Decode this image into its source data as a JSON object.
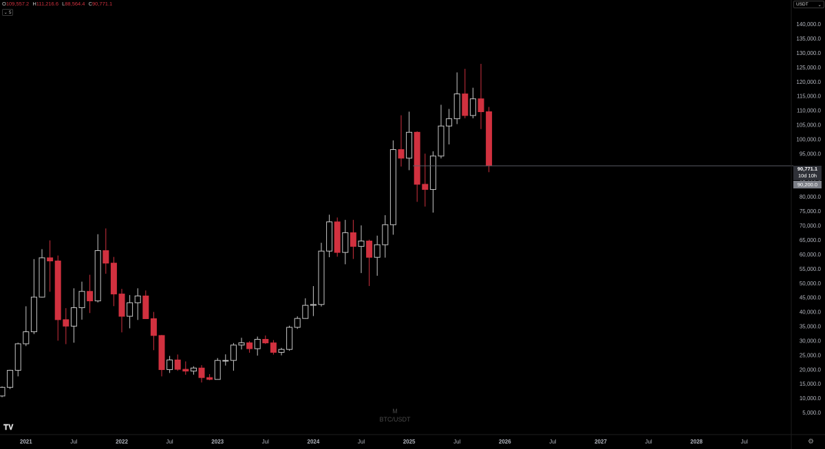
{
  "ohlc": {
    "open_key": "O",
    "open": "109,557.2",
    "high_key": "H",
    "high": "111,216.6",
    "low_key": "L",
    "low": "88,564.4",
    "close_key": "C",
    "close": "90,771.1"
  },
  "interval_button": {
    "icon": "chevron-down-icon",
    "label": "5"
  },
  "currency_selector": {
    "label": "USDT",
    "icon": "chevron-down-icon"
  },
  "watermark": {
    "interval": "M",
    "symbol": "BTC/USDT"
  },
  "price_tags": {
    "last_price": "90,771.1",
    "countdown": "10d 10h",
    "marker_price": "90,200.0"
  },
  "colors": {
    "background": "#000000",
    "up_candle_border": "#c8c8c8",
    "down_candle": "#d1313f",
    "axis_text": "#b2b5be",
    "price_line": "#5b5e66"
  },
  "chart_data": {
    "type": "candlestick",
    "interval": "1M",
    "symbol": "BTC/USDT",
    "y_axis": {
      "ticks": [
        "5,000.0",
        "10,000.0",
        "15,000.0",
        "20,000.0",
        "25,000.0",
        "30,000.0",
        "35,000.0",
        "40,000.0",
        "45,000.0",
        "50,000.0",
        "55,000.0",
        "60,000.0",
        "65,000.0",
        "70,000.0",
        "75,000.0",
        "80,000.0",
        "85,000.0",
        "90,000.0",
        "95,000.0",
        "100,000.0",
        "105,000.0",
        "110,000.0",
        "115,000.0",
        "120,000.0",
        "125,000.0",
        "130,000.0",
        "135,000.0",
        "140,000.0"
      ],
      "range": [
        0,
        146000
      ],
      "scale": "linear"
    },
    "x_axis": {
      "ticks": [
        {
          "label": "2021",
          "bold": true
        },
        {
          "label": "Jul",
          "bold": false
        },
        {
          "label": "2022",
          "bold": true
        },
        {
          "label": "Jul",
          "bold": false
        },
        {
          "label": "2023",
          "bold": true
        },
        {
          "label": "Jul",
          "bold": false
        },
        {
          "label": "2024",
          "bold": true
        },
        {
          "label": "Jul",
          "bold": false
        },
        {
          "label": "2025",
          "bold": true
        },
        {
          "label": "Jul",
          "bold": false
        },
        {
          "label": "2026",
          "bold": true
        },
        {
          "label": "Jul",
          "bold": false
        },
        {
          "label": "2027",
          "bold": true
        },
        {
          "label": "Jul",
          "bold": false
        },
        {
          "label": "2028",
          "bold": true
        },
        {
          "label": "Jul",
          "bold": false
        }
      ]
    },
    "horizontal_line": 90771.1,
    "candles": [
      [
        "2020-10",
        10780,
        14100,
        10370,
        13790
      ],
      [
        "2020-11",
        13790,
        19880,
        13200,
        19700
      ],
      [
        "2020-12",
        19700,
        29300,
        17600,
        28920
      ],
      [
        "2021-01",
        28920,
        41950,
        28130,
        33100
      ],
      [
        "2021-02",
        33100,
        58350,
        32300,
        45140
      ],
      [
        "2021-03",
        45140,
        61800,
        44980,
        58800
      ],
      [
        "2021-04",
        58800,
        64850,
        47000,
        57700
      ],
      [
        "2021-05",
        57700,
        59600,
        30000,
        37300
      ],
      [
        "2021-06",
        37300,
        41300,
        28800,
        35050
      ],
      [
        "2021-07",
        35050,
        48200,
        29300,
        41460
      ],
      [
        "2021-08",
        41460,
        50500,
        37300,
        47130
      ],
      [
        "2021-09",
        47130,
        52900,
        39600,
        43820
      ],
      [
        "2021-10",
        43820,
        67000,
        43300,
        61300
      ],
      [
        "2021-11",
        61300,
        69000,
        53250,
        56950
      ],
      [
        "2021-12",
        56950,
        59100,
        42000,
        46220
      ],
      [
        "2022-01",
        46220,
        47990,
        32900,
        38470
      ],
      [
        "2022-02",
        38470,
        45850,
        34300,
        43180
      ],
      [
        "2022-03",
        43180,
        48200,
        37200,
        45540
      ],
      [
        "2022-04",
        45540,
        47450,
        37700,
        37640
      ],
      [
        "2022-05",
        37640,
        40000,
        26700,
        31800
      ],
      [
        "2022-06",
        31800,
        31980,
        17600,
        19940
      ],
      [
        "2022-07",
        19940,
        24700,
        18780,
        23300
      ],
      [
        "2022-08",
        23300,
        25200,
        19520,
        20050
      ],
      [
        "2022-09",
        20050,
        22800,
        18150,
        19430
      ],
      [
        "2022-10",
        19430,
        21100,
        18200,
        20490
      ],
      [
        "2022-11",
        20490,
        21480,
        15480,
        17170
      ],
      [
        "2022-12",
        17170,
        18390,
        16250,
        16540
      ],
      [
        "2023-01",
        16540,
        23960,
        16500,
        23130
      ],
      [
        "2023-02",
        23130,
        25250,
        21350,
        23140
      ],
      [
        "2023-03",
        23140,
        29200,
        19550,
        28470
      ],
      [
        "2023-04",
        28470,
        31000,
        26940,
        29250
      ],
      [
        "2023-05",
        29250,
        29820,
        25810,
        27210
      ],
      [
        "2023-06",
        27210,
        31430,
        24800,
        30470
      ],
      [
        "2023-07",
        30470,
        31800,
        28860,
        29230
      ],
      [
        "2023-08",
        29230,
        30200,
        25170,
        25940
      ],
      [
        "2023-09",
        25940,
        27500,
        24900,
        26960
      ],
      [
        "2023-10",
        26960,
        35200,
        26530,
        34640
      ],
      [
        "2023-11",
        34640,
        38450,
        34100,
        37720
      ],
      [
        "2023-12",
        37720,
        44730,
        37600,
        42280
      ],
      [
        "2024-01",
        42280,
        48970,
        38550,
        42580
      ],
      [
        "2024-02",
        42580,
        64000,
        41880,
        61130
      ],
      [
        "2024-03",
        61130,
        73780,
        59000,
        71280
      ],
      [
        "2024-04",
        71280,
        72800,
        59190,
        60670
      ],
      [
        "2024-05",
        60670,
        71980,
        56550,
        67520
      ],
      [
        "2024-06",
        67520,
        71980,
        58400,
        62770
      ],
      [
        "2024-07",
        62770,
        70080,
        53500,
        64630
      ],
      [
        "2024-08",
        64630,
        65100,
        49000,
        58970
      ],
      [
        "2024-09",
        58970,
        66500,
        52550,
        63330
      ],
      [
        "2024-10",
        63330,
        73620,
        58860,
        70290
      ],
      [
        "2024-11",
        70290,
        99590,
        66820,
        96410
      ],
      [
        "2024-12",
        96410,
        108350,
        90500,
        93430
      ],
      [
        "2025-01",
        93430,
        109590,
        89250,
        102430
      ],
      [
        "2025-02",
        102430,
        102780,
        78250,
        84350
      ],
      [
        "2025-03",
        84350,
        95000,
        76600,
        82550
      ],
      [
        "2025-04",
        82550,
        95800,
        74500,
        94170
      ],
      [
        "2025-05",
        94170,
        111980,
        93350,
        104600
      ],
      [
        "2025-06",
        104600,
        110530,
        98200,
        107130
      ],
      [
        "2025-07",
        107130,
        123220,
        105270,
        115760
      ],
      [
        "2025-08",
        115760,
        124470,
        107270,
        108250
      ],
      [
        "2025-09",
        108250,
        117900,
        107270,
        114050
      ],
      [
        "2025-10",
        114050,
        126200,
        103530,
        109560
      ],
      [
        "2025-11",
        109557.2,
        111216.6,
        88564.4,
        90771.1
      ]
    ]
  }
}
